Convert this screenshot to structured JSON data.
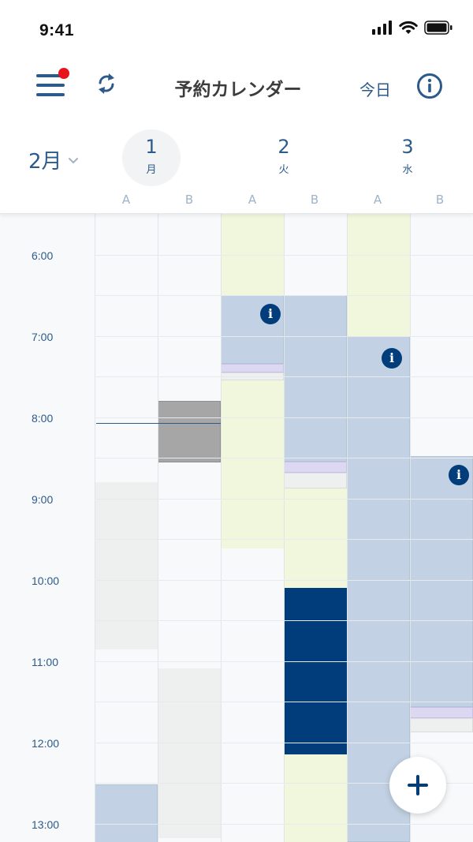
{
  "status_bar": {
    "time": "9:41"
  },
  "app_bar": {
    "title": "予約カレンダー",
    "today_label": "今日",
    "menu_icon": "hamburger-icon",
    "sync_icon": "sync-icon",
    "info_icon": "info-icon"
  },
  "header": {
    "month": "2月",
    "days": [
      {
        "num": "1",
        "weekday": "月",
        "selected": true
      },
      {
        "num": "2",
        "weekday": "火",
        "selected": false
      },
      {
        "num": "3",
        "weekday": "水",
        "selected": false
      }
    ],
    "sublabels": [
      "A",
      "B",
      "A",
      "B",
      "A",
      "B"
    ]
  },
  "times": [
    "6:00",
    "7:00",
    "8:00",
    "9:00",
    "10:00",
    "11:00",
    "12:00",
    "13:00"
  ],
  "colors": {
    "primary": "#2c5a8a",
    "dark_blue": "#003d7a",
    "light_blue": "#c2d1e3",
    "light_green": "#f0f7dc",
    "light_gray": "#eef0ef",
    "gray": "#a6a6a6",
    "lavender": "#ddd8f2",
    "notification": "#e8131b"
  }
}
